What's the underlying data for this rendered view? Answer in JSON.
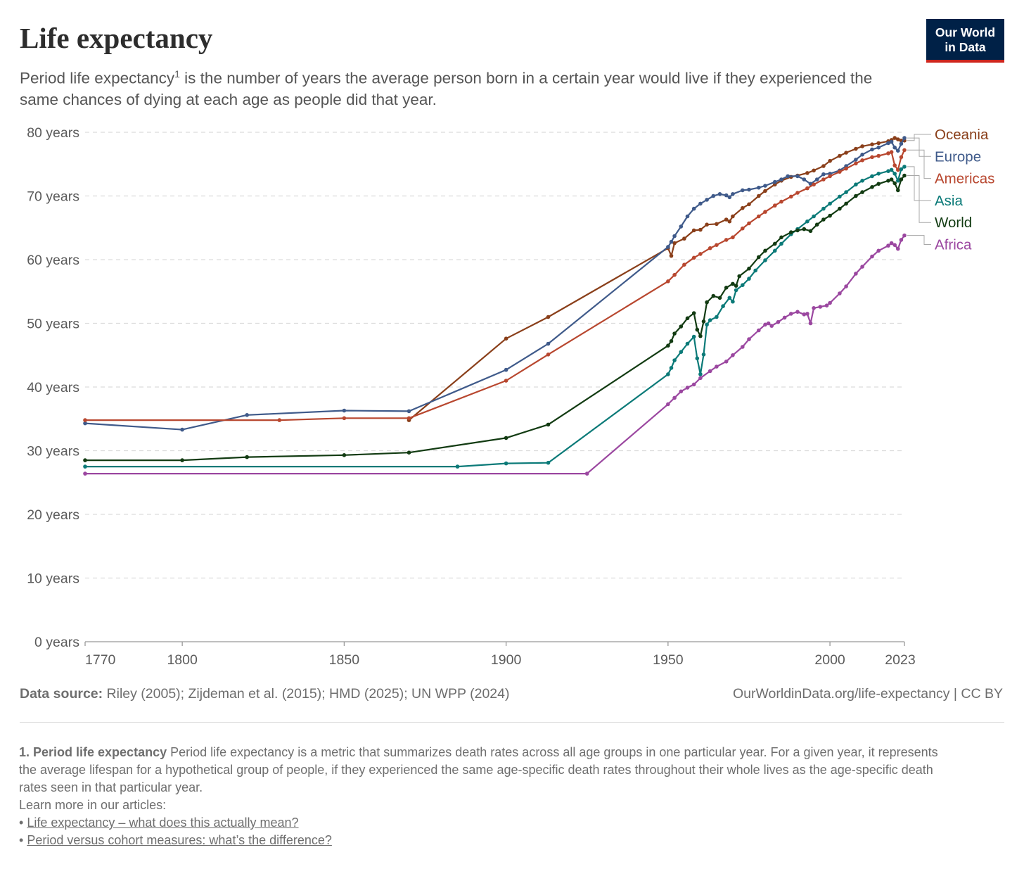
{
  "header": {
    "title": "Life expectancy",
    "subtitle_pre": "Period life expectancy",
    "subtitle_sup": "1",
    "subtitle_post": " is the number of years the average person born in a certain year would live if they experienced the same chances of dying at each age as people did that year."
  },
  "logo": {
    "line1": "Our World",
    "line2": "in Data",
    "bg": "#002147",
    "accent": "#ce261e"
  },
  "footer": {
    "source_label": "Data source:",
    "source_text": " Riley (2005); Zijdeman et al. (2015); HMD (2025); UN WPP (2024)",
    "credit": "OurWorldinData.org/life-expectancy | CC BY"
  },
  "notes": {
    "heading": "1. Period life expectancy",
    "text": " Period life expectancy is a metric that summarizes death rates across all age groups in one particular year. For a given year, it represents the average lifespan for a hypothetical group of people, if they experienced the same age-specific death rates throughout their whole lives as the age-specific death rates seen in that particular year.",
    "learn_more": "Learn more in our articles:",
    "links": [
      "Life expectancy – what does this actually mean?",
      "Period versus cohort measures: what’s the difference?"
    ]
  },
  "chart_data": {
    "type": "line",
    "xlim": [
      1770,
      2023
    ],
    "ylim": [
      0,
      80
    ],
    "x_ticks": [
      "1770",
      "1800",
      "1850",
      "1900",
      "1950",
      "2000",
      "2023"
    ],
    "x_tick_values": [
      1770,
      1800,
      1850,
      1900,
      1950,
      2000,
      2023
    ],
    "y_ticks": [
      "0 years",
      "10 years",
      "20 years",
      "30 years",
      "40 years",
      "50 years",
      "60 years",
      "70 years",
      "80 years"
    ],
    "y_tick_values": [
      0,
      10,
      20,
      30,
      40,
      50,
      60,
      70,
      80
    ],
    "grid": "horizontal dashed",
    "legend": "right, end of lines",
    "series": [
      {
        "name": "Oceania",
        "color": "#8a3f1a",
        "points": [
          [
            1870,
            34.8
          ],
          [
            1900,
            47.6
          ],
          [
            1913,
            51.0
          ],
          [
            1950,
            61.8
          ],
          [
            1951,
            60.6
          ],
          [
            1952,
            62.6
          ],
          [
            1955,
            63.3
          ],
          [
            1958,
            64.6
          ],
          [
            1960,
            64.7
          ],
          [
            1962,
            65.5
          ],
          [
            1965,
            65.6
          ],
          [
            1968,
            66.3
          ],
          [
            1969,
            66.0
          ],
          [
            1970,
            66.8
          ],
          [
            1973,
            68.1
          ],
          [
            1975,
            68.7
          ],
          [
            1978,
            70.0
          ],
          [
            1980,
            70.8
          ],
          [
            1983,
            71.8
          ],
          [
            1985,
            72.4
          ],
          [
            1988,
            73.0
          ],
          [
            1990,
            73.2
          ],
          [
            1993,
            73.6
          ],
          [
            1995,
            74.0
          ],
          [
            1998,
            74.7
          ],
          [
            2000,
            75.5
          ],
          [
            2003,
            76.3
          ],
          [
            2005,
            76.8
          ],
          [
            2008,
            77.4
          ],
          [
            2010,
            77.8
          ],
          [
            2013,
            78.1
          ],
          [
            2015,
            78.3
          ],
          [
            2018,
            78.6
          ],
          [
            2019,
            78.8
          ],
          [
            2020,
            79.1
          ],
          [
            2021,
            78.9
          ],
          [
            2022,
            78.7
          ],
          [
            2023,
            78.7
          ]
        ]
      },
      {
        "name": "Europe",
        "color": "#3f5a8a",
        "points": [
          [
            1770,
            34.3
          ],
          [
            1800,
            33.3
          ],
          [
            1820,
            35.6
          ],
          [
            1850,
            36.3
          ],
          [
            1870,
            36.2
          ],
          [
            1900,
            42.7
          ],
          [
            1913,
            46.8
          ],
          [
            1950,
            62.0
          ],
          [
            1951,
            62.8
          ],
          [
            1952,
            63.7
          ],
          [
            1954,
            65.2
          ],
          [
            1956,
            66.8
          ],
          [
            1958,
            68.0
          ],
          [
            1960,
            68.8
          ],
          [
            1962,
            69.4
          ],
          [
            1964,
            70.0
          ],
          [
            1966,
            70.3
          ],
          [
            1968,
            70.1
          ],
          [
            1969,
            69.8
          ],
          [
            1970,
            70.3
          ],
          [
            1973,
            70.9
          ],
          [
            1975,
            71.0
          ],
          [
            1978,
            71.3
          ],
          [
            1980,
            71.6
          ],
          [
            1983,
            72.2
          ],
          [
            1985,
            72.6
          ],
          [
            1987,
            73.1
          ],
          [
            1990,
            73.1
          ],
          [
            1992,
            72.6
          ],
          [
            1994,
            71.9
          ],
          [
            1996,
            72.6
          ],
          [
            1998,
            73.4
          ],
          [
            2000,
            73.5
          ],
          [
            2003,
            74.0
          ],
          [
            2005,
            74.7
          ],
          [
            2008,
            75.7
          ],
          [
            2010,
            76.5
          ],
          [
            2013,
            77.3
          ],
          [
            2015,
            77.6
          ],
          [
            2018,
            78.3
          ],
          [
            2019,
            78.5
          ],
          [
            2020,
            77.6
          ],
          [
            2021,
            77.1
          ],
          [
            2022,
            78.2
          ],
          [
            2023,
            79.1
          ]
        ]
      },
      {
        "name": "Americas",
        "color": "#b8472f",
        "points": [
          [
            1770,
            34.8
          ],
          [
            1830,
            34.8
          ],
          [
            1850,
            35.1
          ],
          [
            1870,
            35.1
          ],
          [
            1900,
            41.0
          ],
          [
            1913,
            45.1
          ],
          [
            1950,
            56.6
          ],
          [
            1952,
            57.6
          ],
          [
            1955,
            59.2
          ],
          [
            1958,
            60.3
          ],
          [
            1960,
            60.9
          ],
          [
            1963,
            61.8
          ],
          [
            1965,
            62.3
          ],
          [
            1968,
            63.1
          ],
          [
            1970,
            63.5
          ],
          [
            1973,
            64.9
          ],
          [
            1975,
            65.7
          ],
          [
            1978,
            66.8
          ],
          [
            1980,
            67.5
          ],
          [
            1983,
            68.5
          ],
          [
            1985,
            69.1
          ],
          [
            1988,
            69.9
          ],
          [
            1990,
            70.5
          ],
          [
            1993,
            71.2
          ],
          [
            1995,
            71.8
          ],
          [
            1998,
            72.6
          ],
          [
            2000,
            73.1
          ],
          [
            2003,
            73.8
          ],
          [
            2005,
            74.3
          ],
          [
            2008,
            75.1
          ],
          [
            2010,
            75.6
          ],
          [
            2013,
            76.1
          ],
          [
            2015,
            76.3
          ],
          [
            2018,
            76.7
          ],
          [
            2019,
            76.9
          ],
          [
            2020,
            74.8
          ],
          [
            2021,
            74.1
          ],
          [
            2022,
            76.1
          ],
          [
            2023,
            77.2
          ]
        ]
      },
      {
        "name": "Asia",
        "color": "#0b7a78",
        "points": [
          [
            1770,
            27.5
          ],
          [
            1885,
            27.5
          ],
          [
            1900,
            28.0
          ],
          [
            1913,
            28.1
          ],
          [
            1950,
            42.0
          ],
          [
            1951,
            43.0
          ],
          [
            1952,
            44.2
          ],
          [
            1954,
            45.5
          ],
          [
            1956,
            46.8
          ],
          [
            1958,
            47.9
          ],
          [
            1959,
            44.5
          ],
          [
            1960,
            42.0
          ],
          [
            1961,
            45.1
          ],
          [
            1962,
            49.8
          ],
          [
            1963,
            50.5
          ],
          [
            1965,
            51.0
          ],
          [
            1967,
            52.7
          ],
          [
            1969,
            54.0
          ],
          [
            1970,
            53.4
          ],
          [
            1971,
            55.2
          ],
          [
            1973,
            56.0
          ],
          [
            1975,
            57.0
          ],
          [
            1977,
            58.3
          ],
          [
            1980,
            59.9
          ],
          [
            1983,
            61.4
          ],
          [
            1985,
            62.5
          ],
          [
            1988,
            64.0
          ],
          [
            1990,
            64.8
          ],
          [
            1993,
            66.0
          ],
          [
            1995,
            66.8
          ],
          [
            1998,
            68.0
          ],
          [
            2000,
            68.8
          ],
          [
            2003,
            69.9
          ],
          [
            2005,
            70.6
          ],
          [
            2008,
            71.8
          ],
          [
            2010,
            72.4
          ],
          [
            2013,
            73.1
          ],
          [
            2015,
            73.5
          ],
          [
            2018,
            73.9
          ],
          [
            2019,
            74.1
          ],
          [
            2020,
            73.5
          ],
          [
            2021,
            72.4
          ],
          [
            2022,
            74.2
          ],
          [
            2023,
            74.6
          ]
        ]
      },
      {
        "name": "World",
        "color": "#123b12",
        "points": [
          [
            1770,
            28.5
          ],
          [
            1800,
            28.5
          ],
          [
            1820,
            29.0
          ],
          [
            1850,
            29.3
          ],
          [
            1870,
            29.7
          ],
          [
            1900,
            32.0
          ],
          [
            1913,
            34.1
          ],
          [
            1950,
            46.5
          ],
          [
            1951,
            47.2
          ],
          [
            1952,
            48.4
          ],
          [
            1954,
            49.5
          ],
          [
            1956,
            50.8
          ],
          [
            1958,
            51.6
          ],
          [
            1959,
            49.0
          ],
          [
            1960,
            48.0
          ],
          [
            1961,
            50.3
          ],
          [
            1962,
            53.3
          ],
          [
            1964,
            54.3
          ],
          [
            1966,
            54.0
          ],
          [
            1968,
            55.6
          ],
          [
            1970,
            56.2
          ],
          [
            1971,
            55.9
          ],
          [
            1972,
            57.4
          ],
          [
            1975,
            58.6
          ],
          [
            1978,
            60.4
          ],
          [
            1980,
            61.4
          ],
          [
            1983,
            62.5
          ],
          [
            1985,
            63.5
          ],
          [
            1988,
            64.3
          ],
          [
            1990,
            64.6
          ],
          [
            1992,
            64.8
          ],
          [
            1994,
            64.5
          ],
          [
            1996,
            65.5
          ],
          [
            1998,
            66.3
          ],
          [
            2000,
            66.9
          ],
          [
            2003,
            68.0
          ],
          [
            2005,
            68.8
          ],
          [
            2008,
            70.0
          ],
          [
            2010,
            70.6
          ],
          [
            2013,
            71.4
          ],
          [
            2015,
            71.9
          ],
          [
            2018,
            72.4
          ],
          [
            2019,
            72.6
          ],
          [
            2020,
            72.0
          ],
          [
            2021,
            70.9
          ],
          [
            2022,
            72.6
          ],
          [
            2023,
            73.2
          ]
        ]
      },
      {
        "name": "Africa",
        "color": "#9b47a0",
        "points": [
          [
            1770,
            26.4
          ],
          [
            1925,
            26.4
          ],
          [
            1950,
            37.3
          ],
          [
            1952,
            38.3
          ],
          [
            1954,
            39.3
          ],
          [
            1956,
            39.9
          ],
          [
            1958,
            40.4
          ],
          [
            1960,
            41.4
          ],
          [
            1963,
            42.5
          ],
          [
            1965,
            43.2
          ],
          [
            1968,
            44.0
          ],
          [
            1970,
            45.0
          ],
          [
            1973,
            46.3
          ],
          [
            1975,
            47.5
          ],
          [
            1978,
            48.9
          ],
          [
            1980,
            49.8
          ],
          [
            1981,
            50.0
          ],
          [
            1982,
            49.6
          ],
          [
            1984,
            50.2
          ],
          [
            1986,
            50.9
          ],
          [
            1988,
            51.5
          ],
          [
            1990,
            51.8
          ],
          [
            1992,
            51.4
          ],
          [
            1993,
            51.5
          ],
          [
            1994,
            50.0
          ],
          [
            1995,
            52.4
          ],
          [
            1997,
            52.6
          ],
          [
            1999,
            52.8
          ],
          [
            2000,
            53.2
          ],
          [
            2003,
            54.7
          ],
          [
            2005,
            55.8
          ],
          [
            2008,
            57.8
          ],
          [
            2010,
            58.9
          ],
          [
            2013,
            60.5
          ],
          [
            2015,
            61.4
          ],
          [
            2018,
            62.2
          ],
          [
            2019,
            62.6
          ],
          [
            2020,
            62.3
          ],
          [
            2021,
            61.7
          ],
          [
            2022,
            63.1
          ],
          [
            2023,
            63.8
          ]
        ]
      }
    ]
  }
}
